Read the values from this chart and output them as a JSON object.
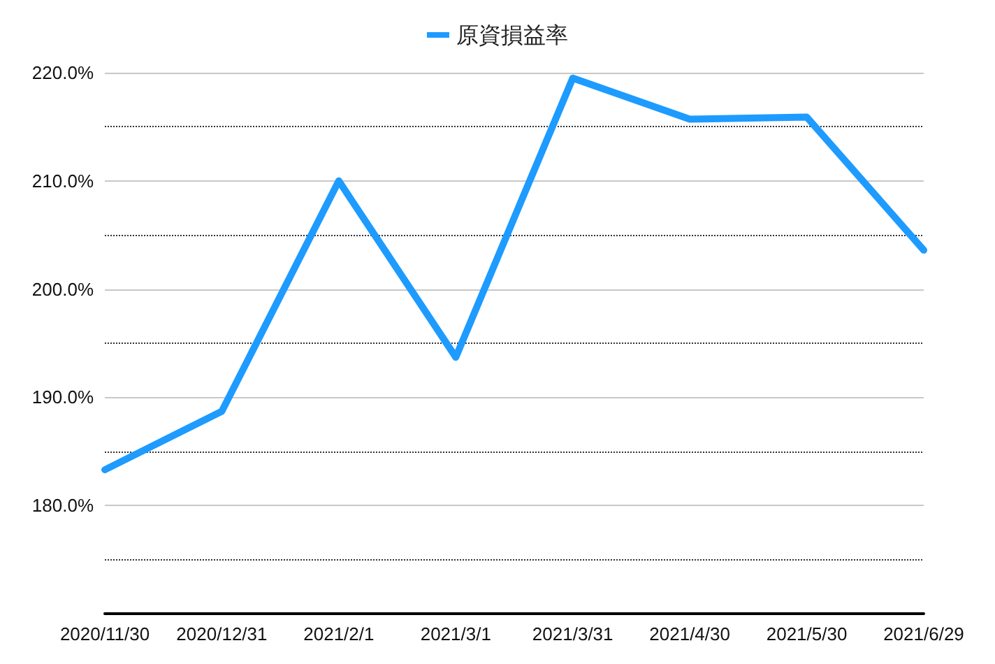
{
  "chart_data": {
    "type": "line",
    "categories": [
      "2020/11/30",
      "2020/12/31",
      "2021/2/1",
      "2021/3/1",
      "2021/3/31",
      "2021/4/30",
      "2021/5/30",
      "2021/6/29"
    ],
    "series": [
      {
        "name": "原資損益率",
        "color": "#1e9bff",
        "values": [
          183.3,
          188.7,
          210.0,
          193.7,
          219.5,
          215.7,
          215.9,
          203.6
        ]
      }
    ],
    "ylim": [
      170,
      220
    ],
    "yticks": [
      {
        "value": 175,
        "label": null
      },
      {
        "value": 180,
        "label": "180.0%"
      },
      {
        "value": 185,
        "label": null
      },
      {
        "value": 190,
        "label": "190.0%"
      },
      {
        "value": 195,
        "label": null
      },
      {
        "value": 200,
        "label": "200.0%"
      },
      {
        "value": 205,
        "label": null
      },
      {
        "value": 210,
        "label": "210.0%"
      },
      {
        "value": 215,
        "label": null
      },
      {
        "value": 220,
        "label": "220.0%"
      }
    ],
    "grid": "y",
    "legend": "top",
    "marker": "none",
    "line_style": "solid"
  }
}
